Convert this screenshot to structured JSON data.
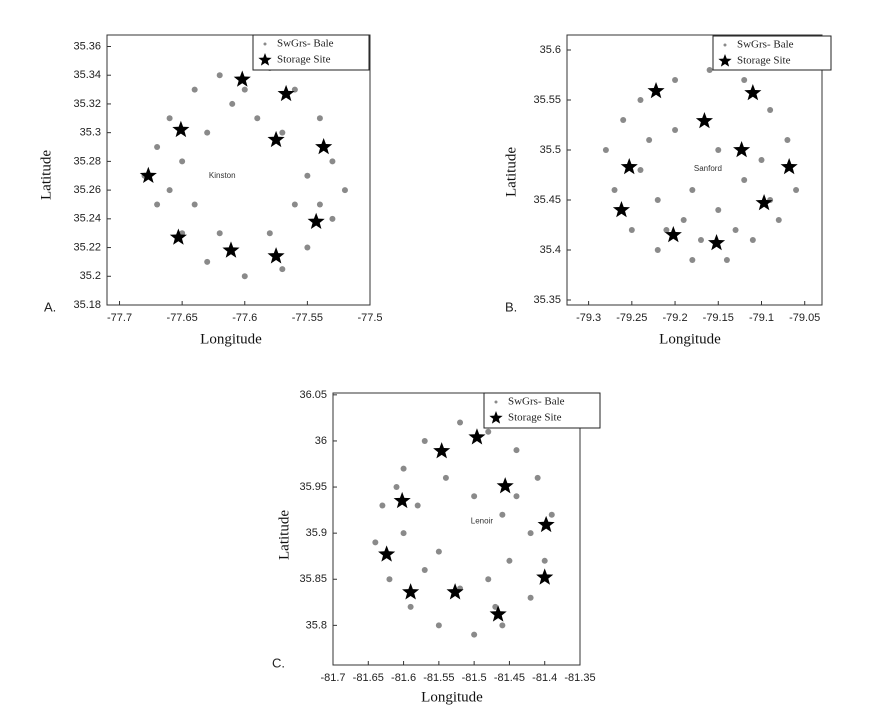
{
  "chart_data": [
    {
      "type": "scatter",
      "panel_label": "A.",
      "xlabel": "Longitude",
      "ylabel": "Latitude",
      "xlim": [
        -77.71,
        -77.5
      ],
      "ylim": [
        35.18,
        35.368
      ],
      "xticks": [
        -77.7,
        -77.65,
        -77.6,
        -77.55,
        -77.5
      ],
      "yticks": [
        35.18,
        35.2,
        35.22,
        35.24,
        35.26,
        35.28,
        35.3,
        35.32,
        35.34,
        35.36
      ],
      "legend": "upper right",
      "annotations": [
        {
          "text": "Kinston",
          "x": -77.618,
          "y": 35.27
        }
      ],
      "series": [
        {
          "name": "SwGrs- Bale",
          "color": "#8a8a8a",
          "marker": "dot",
          "x": [
            -77.62,
            -77.58,
            -77.56,
            -77.54,
            -77.53,
            -77.52,
            -77.53,
            -77.55,
            -77.57,
            -77.6,
            -77.63,
            -77.65,
            -77.67,
            -77.68,
            -77.67,
            -77.66,
            -77.64,
            -77.61,
            -77.59,
            -77.57,
            -77.55,
            -77.56,
            -77.58,
            -77.62,
            -77.64,
            -77.65,
            -77.63,
            -77.66,
            -77.54,
            -77.6
          ],
          "y": [
            35.34,
            35.345,
            35.33,
            35.31,
            35.28,
            35.26,
            35.24,
            35.22,
            35.205,
            35.2,
            35.21,
            35.23,
            35.25,
            35.27,
            35.29,
            35.31,
            35.33,
            35.32,
            35.31,
            35.3,
            35.27,
            35.25,
            35.23,
            35.23,
            35.25,
            35.28,
            35.3,
            35.26,
            35.25,
            35.33
          ]
        },
        {
          "name": "Storage Site",
          "color": "#000000",
          "marker": "star",
          "x": [
            -77.602,
            -77.567,
            -77.651,
            -77.575,
            -77.537,
            -77.677,
            -77.543,
            -77.653,
            -77.611,
            -77.575
          ],
          "y": [
            35.337,
            35.327,
            35.302,
            35.295,
            35.29,
            35.27,
            35.238,
            35.227,
            35.218,
            35.214
          ]
        }
      ]
    },
    {
      "type": "scatter",
      "panel_label": "B.",
      "xlabel": "Longitude",
      "ylabel": "Latitude",
      "xlim": [
        -79.325,
        -79.03
      ],
      "ylim": [
        35.345,
        35.615
      ],
      "xticks": [
        -79.3,
        -79.25,
        -79.2,
        -79.15,
        -79.1,
        -79.05
      ],
      "yticks": [
        35.35,
        35.4,
        35.45,
        35.5,
        35.55,
        35.6
      ],
      "legend": "upper right",
      "annotations": [
        {
          "text": "Sanford",
          "x": -79.162,
          "y": 35.481
        }
      ],
      "series": [
        {
          "name": "SwGrs- Bale",
          "color": "#8a8a8a",
          "marker": "dot",
          "x": [
            -79.2,
            -79.16,
            -79.12,
            -79.09,
            -79.07,
            -79.06,
            -79.08,
            -79.11,
            -79.14,
            -79.18,
            -79.22,
            -79.25,
            -79.27,
            -79.28,
            -79.26,
            -79.24,
            -79.2,
            -79.15,
            -79.12,
            -79.15,
            -79.19,
            -79.22,
            -79.24,
            -79.1,
            -79.17,
            -79.13,
            -79.21,
            -79.23,
            -79.09,
            -79.18
          ],
          "y": [
            35.57,
            35.58,
            35.57,
            35.54,
            35.51,
            35.46,
            35.43,
            35.41,
            35.39,
            35.39,
            35.4,
            35.42,
            35.46,
            35.5,
            35.53,
            35.55,
            35.52,
            35.5,
            35.47,
            35.44,
            35.43,
            35.45,
            35.48,
            35.49,
            35.41,
            35.42,
            35.42,
            35.51,
            35.45,
            35.46
          ]
        },
        {
          "name": "Storage Site",
          "color": "#000000",
          "marker": "star",
          "x": [
            -79.222,
            -79.11,
            -79.166,
            -79.123,
            -79.253,
            -79.068,
            -79.262,
            -79.097,
            -79.202,
            -79.152
          ],
          "y": [
            35.559,
            35.557,
            35.529,
            35.5,
            35.483,
            35.483,
            35.44,
            35.447,
            35.415,
            35.407
          ]
        }
      ]
    },
    {
      "type": "scatter",
      "panel_label": "C.",
      "xlabel": "Longitude",
      "ylabel": "Latitude",
      "xlim": [
        -81.7,
        -81.35
      ],
      "ylim": [
        35.757,
        36.052
      ],
      "xticks": [
        -81.7,
        -81.65,
        -81.6,
        -81.55,
        -81.5,
        -81.45,
        -81.4,
        -81.35
      ],
      "yticks": [
        35.8,
        35.85,
        35.9,
        35.95,
        36,
        36.05
      ],
      "legend": "upper right",
      "annotations": [
        {
          "text": "Lenoir",
          "x": -81.489,
          "y": 35.913
        }
      ],
      "series": [
        {
          "name": "SwGrs- Bale",
          "color": "#8a8a8a",
          "marker": "dot",
          "x": [
            -81.52,
            -81.48,
            -81.44,
            -81.41,
            -81.39,
            -81.4,
            -81.42,
            -81.46,
            -81.5,
            -81.55,
            -81.59,
            -81.62,
            -81.64,
            -81.63,
            -81.6,
            -81.57,
            -81.54,
            -81.5,
            -81.46,
            -81.45,
            -81.48,
            -81.52,
            -81.57,
            -81.6,
            -81.58,
            -81.44,
            -81.55,
            -81.47,
            -81.61,
            -81.42
          ],
          "y": [
            36.02,
            36.01,
            35.99,
            35.96,
            35.92,
            35.87,
            35.83,
            35.8,
            35.79,
            35.8,
            35.82,
            35.85,
            35.89,
            35.93,
            35.97,
            36.0,
            35.96,
            35.94,
            35.92,
            35.87,
            35.85,
            35.84,
            35.86,
            35.9,
            35.93,
            35.94,
            35.88,
            35.82,
            35.95,
            35.9
          ]
        },
        {
          "name": "Storage Site",
          "color": "#000000",
          "marker": "star",
          "x": [
            -81.496,
            -81.546,
            -81.456,
            -81.602,
            -81.398,
            -81.624,
            -81.4,
            -81.59,
            -81.527,
            -81.466
          ],
          "y": [
            36.004,
            35.989,
            35.951,
            35.935,
            35.909,
            35.877,
            35.852,
            35.836,
            35.836,
            35.812
          ]
        }
      ]
    }
  ]
}
